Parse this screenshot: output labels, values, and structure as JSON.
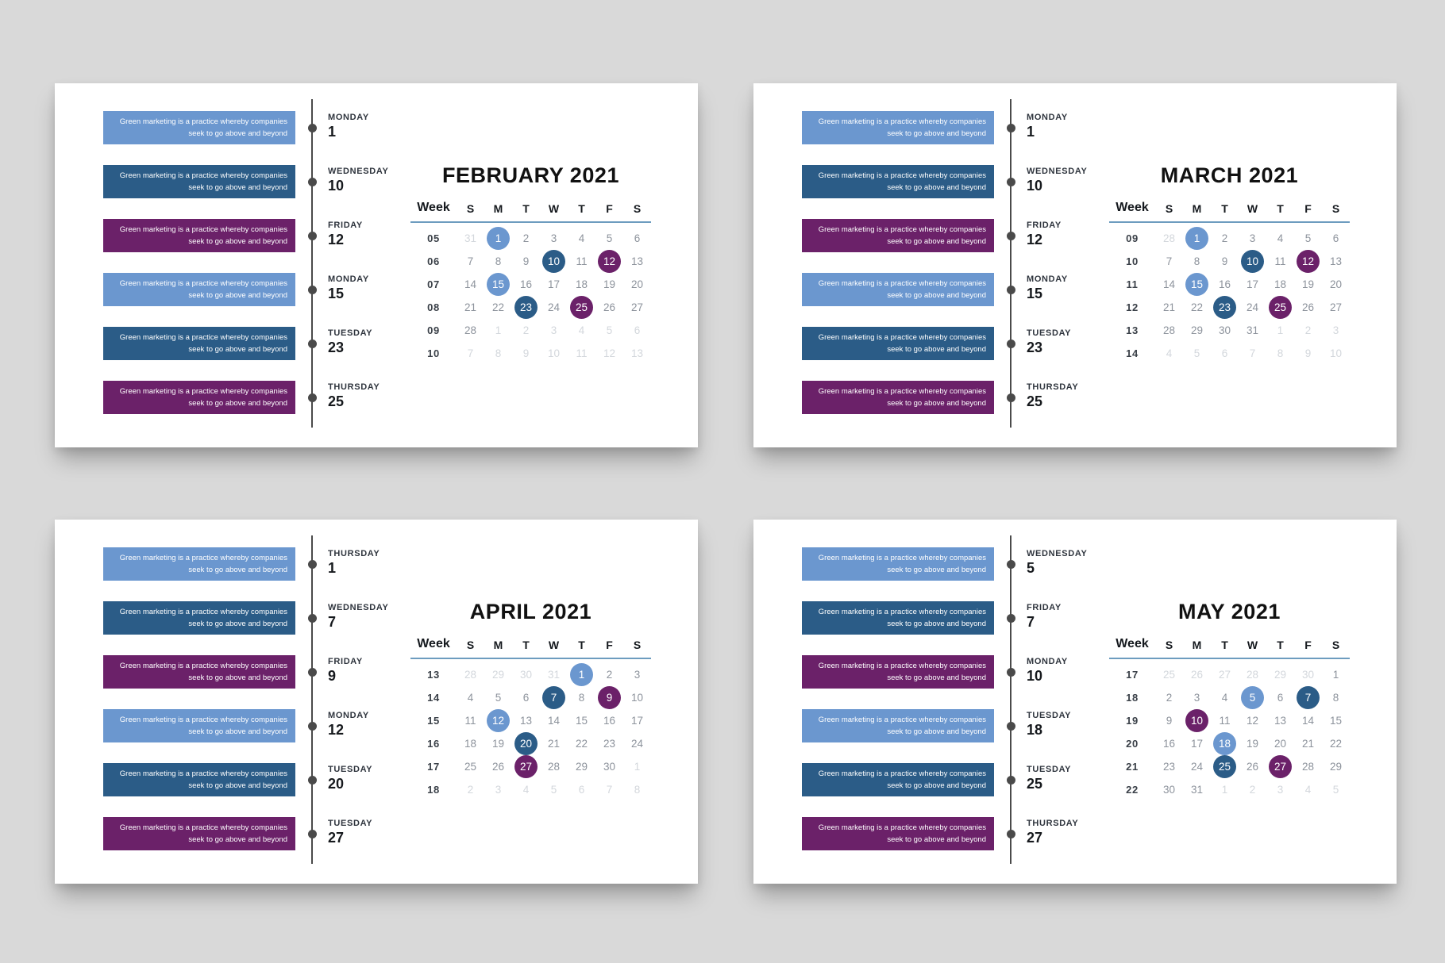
{
  "canvas": {
    "background": "#d9d9d9",
    "panel_background": "#ffffff"
  },
  "colors": {
    "light_blue": "#6b97cf",
    "dark_blue": "#2b5c87",
    "purple": "#6b2169",
    "timeline": "#4a4a4a",
    "divider": "#6d9cbf",
    "date_normal": "#8d939c",
    "date_muted": "#d3d7dc",
    "date_highlight_text": "#ffffff"
  },
  "event_note": {
    "line1": "Green marketing is a practice whereby companies",
    "line2": "seek to go above and beyond"
  },
  "calendar_header": {
    "week_label": "Week",
    "day_letters": [
      "S",
      "M",
      "T",
      "W",
      "T",
      "F",
      "S"
    ]
  },
  "panels": [
    {
      "id": "february",
      "title": "FEBRUARY 2021",
      "events": [
        {
          "day_name": "MONDAY",
          "date": "1",
          "color": "light_blue"
        },
        {
          "day_name": "WEDNESDAY",
          "date": "10",
          "color": "dark_blue"
        },
        {
          "day_name": "FRIDAY",
          "date": "12",
          "color": "purple"
        },
        {
          "day_name": "MONDAY",
          "date": "15",
          "color": "light_blue"
        },
        {
          "day_name": "TUESDAY",
          "date": "23",
          "color": "dark_blue"
        },
        {
          "day_name": "THURSDAY",
          "date": "25",
          "color": "purple"
        }
      ],
      "weeks": [
        {
          "week": "05",
          "days": [
            {
              "d": "31",
              "muted": true
            },
            {
              "d": "1",
              "hl": "light_blue"
            },
            {
              "d": "2"
            },
            {
              "d": "3"
            },
            {
              "d": "4"
            },
            {
              "d": "5"
            },
            {
              "d": "6"
            }
          ]
        },
        {
          "week": "06",
          "days": [
            {
              "d": "7"
            },
            {
              "d": "8"
            },
            {
              "d": "9"
            },
            {
              "d": "10",
              "hl": "dark_blue"
            },
            {
              "d": "11"
            },
            {
              "d": "12",
              "hl": "purple"
            },
            {
              "d": "13"
            }
          ]
        },
        {
          "week": "07",
          "days": [
            {
              "d": "14"
            },
            {
              "d": "15",
              "hl": "light_blue"
            },
            {
              "d": "16"
            },
            {
              "d": "17"
            },
            {
              "d": "18"
            },
            {
              "d": "19"
            },
            {
              "d": "20"
            }
          ]
        },
        {
          "week": "08",
          "days": [
            {
              "d": "21"
            },
            {
              "d": "22"
            },
            {
              "d": "23",
              "hl": "dark_blue"
            },
            {
              "d": "24"
            },
            {
              "d": "25",
              "hl": "purple"
            },
            {
              "d": "26"
            },
            {
              "d": "27"
            }
          ]
        },
        {
          "week": "09",
          "days": [
            {
              "d": "28"
            },
            {
              "d": "1",
              "muted": true
            },
            {
              "d": "2",
              "muted": true
            },
            {
              "d": "3",
              "muted": true
            },
            {
              "d": "4",
              "muted": true
            },
            {
              "d": "5",
              "muted": true
            },
            {
              "d": "6",
              "muted": true
            }
          ]
        },
        {
          "week": "10",
          "days": [
            {
              "d": "7",
              "muted": true
            },
            {
              "d": "8",
              "muted": true
            },
            {
              "d": "9",
              "muted": true
            },
            {
              "d": "10",
              "muted": true
            },
            {
              "d": "11",
              "muted": true
            },
            {
              "d": "12",
              "muted": true
            },
            {
              "d": "13",
              "muted": true
            }
          ]
        }
      ]
    },
    {
      "id": "march",
      "title": "MARCH 2021",
      "events": [
        {
          "day_name": "MONDAY",
          "date": "1",
          "color": "light_blue"
        },
        {
          "day_name": "WEDNESDAY",
          "date": "10",
          "color": "dark_blue"
        },
        {
          "day_name": "FRIDAY",
          "date": "12",
          "color": "purple"
        },
        {
          "day_name": "MONDAY",
          "date": "15",
          "color": "light_blue"
        },
        {
          "day_name": "TUESDAY",
          "date": "23",
          "color": "dark_blue"
        },
        {
          "day_name": "THURSDAY",
          "date": "25",
          "color": "purple"
        }
      ],
      "weeks": [
        {
          "week": "09",
          "days": [
            {
              "d": "28",
              "muted": true
            },
            {
              "d": "1",
              "hl": "light_blue"
            },
            {
              "d": "2"
            },
            {
              "d": "3"
            },
            {
              "d": "4"
            },
            {
              "d": "5"
            },
            {
              "d": "6"
            }
          ]
        },
        {
          "week": "10",
          "days": [
            {
              "d": "7"
            },
            {
              "d": "8"
            },
            {
              "d": "9"
            },
            {
              "d": "10",
              "hl": "dark_blue"
            },
            {
              "d": "11"
            },
            {
              "d": "12",
              "hl": "purple"
            },
            {
              "d": "13"
            }
          ]
        },
        {
          "week": "11",
          "days": [
            {
              "d": "14"
            },
            {
              "d": "15",
              "hl": "light_blue"
            },
            {
              "d": "16"
            },
            {
              "d": "17"
            },
            {
              "d": "18"
            },
            {
              "d": "19"
            },
            {
              "d": "20"
            }
          ]
        },
        {
          "week": "12",
          "days": [
            {
              "d": "21"
            },
            {
              "d": "22"
            },
            {
              "d": "23",
              "hl": "dark_blue"
            },
            {
              "d": "24"
            },
            {
              "d": "25",
              "hl": "purple"
            },
            {
              "d": "26"
            },
            {
              "d": "27"
            }
          ]
        },
        {
          "week": "13",
          "days": [
            {
              "d": "28"
            },
            {
              "d": "29"
            },
            {
              "d": "30"
            },
            {
              "d": "31"
            },
            {
              "d": "1",
              "muted": true
            },
            {
              "d": "2",
              "muted": true
            },
            {
              "d": "3",
              "muted": true
            }
          ]
        },
        {
          "week": "14",
          "days": [
            {
              "d": "4",
              "muted": true
            },
            {
              "d": "5",
              "muted": true
            },
            {
              "d": "6",
              "muted": true
            },
            {
              "d": "7",
              "muted": true
            },
            {
              "d": "8",
              "muted": true
            },
            {
              "d": "9",
              "muted": true
            },
            {
              "d": "10",
              "muted": true
            }
          ]
        }
      ]
    },
    {
      "id": "april",
      "title": "APRIL 2021",
      "events": [
        {
          "day_name": "THURSDAY",
          "date": "1",
          "color": "light_blue"
        },
        {
          "day_name": "WEDNESDAY",
          "date": "7",
          "color": "dark_blue"
        },
        {
          "day_name": "FRIDAY",
          "date": "9",
          "color": "purple"
        },
        {
          "day_name": "MONDAY",
          "date": "12",
          "color": "light_blue"
        },
        {
          "day_name": "TUESDAY",
          "date": "20",
          "color": "dark_blue"
        },
        {
          "day_name": "TUESDAY",
          "date": "27",
          "color": "purple"
        }
      ],
      "weeks": [
        {
          "week": "13",
          "days": [
            {
              "d": "28",
              "muted": true
            },
            {
              "d": "29",
              "muted": true
            },
            {
              "d": "30",
              "muted": true
            },
            {
              "d": "31",
              "muted": true
            },
            {
              "d": "1",
              "hl": "light_blue"
            },
            {
              "d": "2"
            },
            {
              "d": "3"
            }
          ]
        },
        {
          "week": "14",
          "days": [
            {
              "d": "4"
            },
            {
              "d": "5"
            },
            {
              "d": "6"
            },
            {
              "d": "7",
              "hl": "dark_blue"
            },
            {
              "d": "8"
            },
            {
              "d": "9",
              "hl": "purple"
            },
            {
              "d": "10"
            }
          ]
        },
        {
          "week": "15",
          "days": [
            {
              "d": "11"
            },
            {
              "d": "12",
              "hl": "light_blue"
            },
            {
              "d": "13"
            },
            {
              "d": "14"
            },
            {
              "d": "15"
            },
            {
              "d": "16"
            },
            {
              "d": "17"
            }
          ]
        },
        {
          "week": "16",
          "days": [
            {
              "d": "18"
            },
            {
              "d": "19"
            },
            {
              "d": "20",
              "hl": "dark_blue"
            },
            {
              "d": "21"
            },
            {
              "d": "22"
            },
            {
              "d": "23"
            },
            {
              "d": "24"
            }
          ]
        },
        {
          "week": "17",
          "days": [
            {
              "d": "25"
            },
            {
              "d": "26"
            },
            {
              "d": "27",
              "hl": "purple"
            },
            {
              "d": "28"
            },
            {
              "d": "29"
            },
            {
              "d": "30"
            },
            {
              "d": "1",
              "muted": true
            }
          ]
        },
        {
          "week": "18",
          "days": [
            {
              "d": "2",
              "muted": true
            },
            {
              "d": "3",
              "muted": true
            },
            {
              "d": "4",
              "muted": true
            },
            {
              "d": "5",
              "muted": true
            },
            {
              "d": "6",
              "muted": true
            },
            {
              "d": "7",
              "muted": true
            },
            {
              "d": "8",
              "muted": true
            }
          ]
        }
      ]
    },
    {
      "id": "may",
      "title": "MAY 2021",
      "events": [
        {
          "day_name": "WEDNESDAY",
          "date": "5",
          "color": "light_blue"
        },
        {
          "day_name": "FRIDAY",
          "date": "7",
          "color": "dark_blue"
        },
        {
          "day_name": "MONDAY",
          "date": "10",
          "color": "purple"
        },
        {
          "day_name": "TUESDAY",
          "date": "18",
          "color": "light_blue"
        },
        {
          "day_name": "TUESDAY",
          "date": "25",
          "color": "dark_blue"
        },
        {
          "day_name": "THURSDAY",
          "date": "27",
          "color": "purple"
        }
      ],
      "weeks": [
        {
          "week": "17",
          "days": [
            {
              "d": "25",
              "muted": true
            },
            {
              "d": "26",
              "muted": true
            },
            {
              "d": "27",
              "muted": true
            },
            {
              "d": "28",
              "muted": true
            },
            {
              "d": "29",
              "muted": true
            },
            {
              "d": "30",
              "muted": true
            },
            {
              "d": "1"
            }
          ]
        },
        {
          "week": "18",
          "days": [
            {
              "d": "2"
            },
            {
              "d": "3"
            },
            {
              "d": "4"
            },
            {
              "d": "5",
              "hl": "light_blue"
            },
            {
              "d": "6"
            },
            {
              "d": "7",
              "hl": "dark_blue"
            },
            {
              "d": "8"
            }
          ]
        },
        {
          "week": "19",
          "days": [
            {
              "d": "9"
            },
            {
              "d": "10",
              "hl": "purple"
            },
            {
              "d": "11"
            },
            {
              "d": "12"
            },
            {
              "d": "13"
            },
            {
              "d": "14"
            },
            {
              "d": "15"
            }
          ]
        },
        {
          "week": "20",
          "days": [
            {
              "d": "16"
            },
            {
              "d": "17"
            },
            {
              "d": "18",
              "hl": "light_blue"
            },
            {
              "d": "19"
            },
            {
              "d": "20"
            },
            {
              "d": "21"
            },
            {
              "d": "22"
            }
          ]
        },
        {
          "week": "21",
          "days": [
            {
              "d": "23"
            },
            {
              "d": "24"
            },
            {
              "d": "25",
              "hl": "dark_blue"
            },
            {
              "d": "26"
            },
            {
              "d": "27",
              "hl": "purple"
            },
            {
              "d": "28"
            },
            {
              "d": "29"
            }
          ]
        },
        {
          "week": "22",
          "days": [
            {
              "d": "30"
            },
            {
              "d": "31"
            },
            {
              "d": "1",
              "muted": true
            },
            {
              "d": "2",
              "muted": true
            },
            {
              "d": "3",
              "muted": true
            },
            {
              "d": "4",
              "muted": true
            },
            {
              "d": "5",
              "muted": true
            }
          ]
        }
      ]
    }
  ]
}
